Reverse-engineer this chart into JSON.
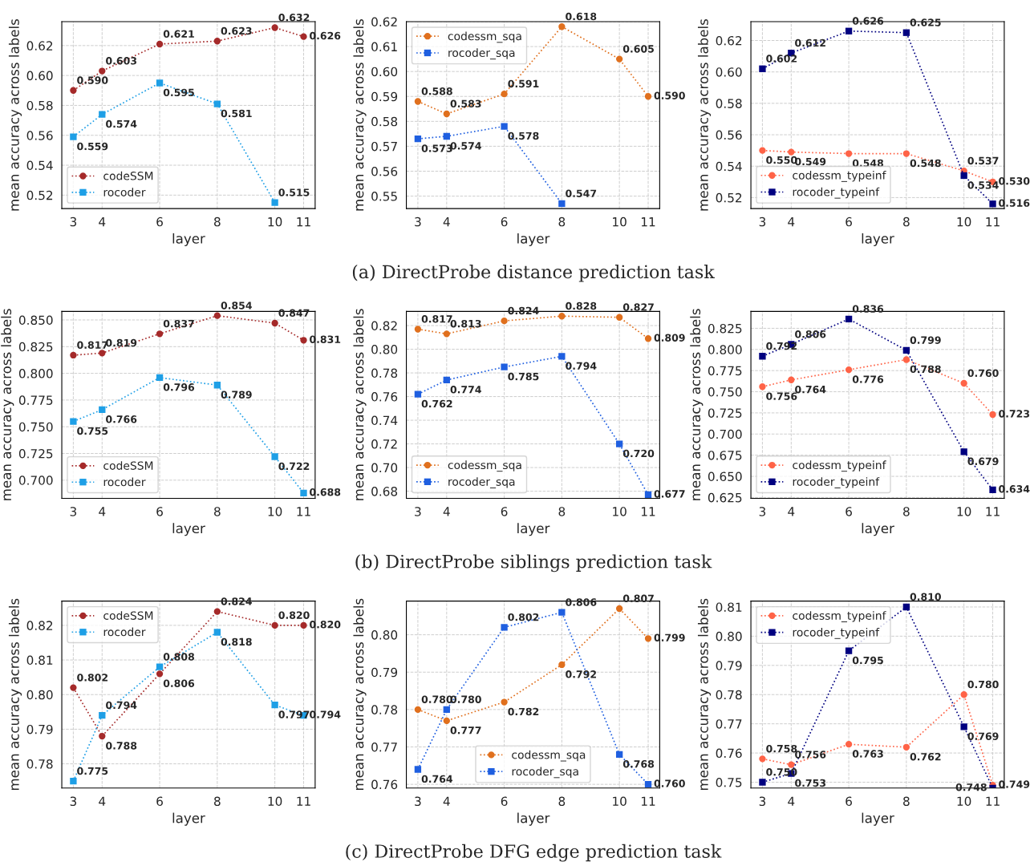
{
  "chart_data": [
    {
      "type": "line",
      "xlabel": "layer",
      "ylabel": "mean accuracy across labels",
      "x": [
        3,
        4,
        6,
        8,
        10,
        11
      ],
      "xlim": [
        2.6,
        11.4
      ],
      "xticks": [
        3,
        4,
        6,
        8,
        10,
        11
      ],
      "ylim": [
        0.511,
        0.636
      ],
      "yticks": [
        {
          "value": 0.52,
          "label": "0.52"
        },
        {
          "value": 0.54,
          "label": "0.54"
        },
        {
          "value": 0.56,
          "label": "0.56"
        },
        {
          "value": 0.58,
          "label": "0.58"
        },
        {
          "value": 0.6,
          "label": "0.60"
        },
        {
          "value": 0.62,
          "label": "0.62"
        }
      ],
      "grid": true,
      "legend": "bottom left",
      "line_style": "dotted",
      "series": [
        {
          "name": "codeSSM",
          "color": "#a52a2a",
          "marker": "circle",
          "values": [
            0.59,
            0.603,
            0.621,
            0.623,
            0.632,
            0.626
          ],
          "value_labels": [
            "0.590",
            "0.603",
            "0.621",
            "0.623",
            "0.632",
            "0.626"
          ]
        },
        {
          "name": "rocoder",
          "color": "#1e9fe6",
          "marker": "square",
          "values": [
            0.559,
            0.574,
            0.595,
            0.581,
            0.515,
            null
          ],
          "value_labels": [
            "0.559",
            "0.574",
            "0.595",
            "0.581",
            "0.515",
            null
          ]
        }
      ]
    },
    {
      "type": "line",
      "xlabel": "layer",
      "ylabel": "mean accuracy across labels",
      "x": [
        3,
        4,
        6,
        8,
        10,
        11
      ],
      "xlim": [
        2.6,
        11.4
      ],
      "xticks": [
        3,
        4,
        6,
        8,
        10,
        11
      ],
      "ylim": [
        0.545,
        0.62
      ],
      "yticks": [
        {
          "value": 0.55,
          "label": "0.55"
        },
        {
          "value": 0.56,
          "label": "0.56"
        },
        {
          "value": 0.57,
          "label": "0.57"
        },
        {
          "value": 0.58,
          "label": "0.58"
        },
        {
          "value": 0.59,
          "label": "0.59"
        },
        {
          "value": 0.6,
          "label": "0.60"
        },
        {
          "value": 0.61,
          "label": "0.61"
        },
        {
          "value": 0.62,
          "label": "0.62"
        }
      ],
      "grid": true,
      "legend": "top left",
      "line_style": "dotted",
      "annotations": [
        "(a) DirectProbe distance prediction task"
      ],
      "series": [
        {
          "name": "codessm_sqa",
          "color": "#e0701e",
          "marker": "circle",
          "values": [
            0.588,
            0.583,
            0.591,
            0.618,
            0.605,
            0.59
          ],
          "value_labels": [
            "0.588",
            "0.583",
            "0.591",
            "0.618",
            "0.605",
            "0.590"
          ]
        },
        {
          "name": "rocoder_sqa",
          "color": "#1f5fe0",
          "marker": "square",
          "values": [
            0.573,
            0.574,
            0.578,
            0.547,
            null,
            null
          ],
          "value_labels": [
            "0.573",
            "0.574",
            "0.578",
            "0.547",
            null,
            null
          ]
        }
      ]
    },
    {
      "type": "line",
      "xlabel": "layer",
      "ylabel": "mean accuracy across labels",
      "x": [
        3,
        4,
        6,
        8,
        10,
        11
      ],
      "xlim": [
        2.6,
        11.4
      ],
      "xticks": [
        3,
        4,
        6,
        8,
        10,
        11
      ],
      "ylim": [
        0.513,
        0.632
      ],
      "yticks": [
        {
          "value": 0.52,
          "label": "0.52"
        },
        {
          "value": 0.54,
          "label": "0.54"
        },
        {
          "value": 0.56,
          "label": "0.56"
        },
        {
          "value": 0.58,
          "label": "0.58"
        },
        {
          "value": 0.6,
          "label": "0.60"
        },
        {
          "value": 0.62,
          "label": "0.62"
        }
      ],
      "grid": true,
      "legend": "bottom left",
      "line_style": "dotted",
      "series": [
        {
          "name": "codessm_typeinf",
          "color": "#ff6347",
          "marker": "circle",
          "values": [
            0.55,
            0.549,
            0.548,
            0.548,
            0.537,
            0.53
          ],
          "value_labels": [
            "0.550",
            "0.549",
            "0.548",
            "0.548",
            "0.537",
            "0.530"
          ]
        },
        {
          "name": "rocoder_typeinf",
          "color": "#000080",
          "marker": "square",
          "values": [
            0.602,
            0.612,
            0.626,
            0.625,
            0.534,
            0.516
          ],
          "value_labels": [
            "0.602",
            "0.612",
            "0.626",
            "0.625",
            "0.534",
            "0.516"
          ]
        }
      ]
    },
    {
      "type": "line",
      "xlabel": "layer",
      "ylabel": "mean accuracy across labels",
      "x": [
        3,
        4,
        6,
        8,
        10,
        11
      ],
      "xlim": [
        2.6,
        11.4
      ],
      "xticks": [
        3,
        4,
        6,
        8,
        10,
        11
      ],
      "ylim": [
        0.683,
        0.858
      ],
      "yticks": [
        {
          "value": 0.7,
          "label": "0.700"
        },
        {
          "value": 0.725,
          "label": "0.725"
        },
        {
          "value": 0.75,
          "label": "0.750"
        },
        {
          "value": 0.775,
          "label": "0.775"
        },
        {
          "value": 0.8,
          "label": "0.800"
        },
        {
          "value": 0.825,
          "label": "0.825"
        },
        {
          "value": 0.85,
          "label": "0.850"
        }
      ],
      "grid": true,
      "legend": "bottom left",
      "line_style": "dotted",
      "series": [
        {
          "name": "codeSSM",
          "color": "#a52a2a",
          "marker": "circle",
          "values": [
            0.817,
            0.819,
            0.837,
            0.854,
            0.847,
            0.831
          ],
          "value_labels": [
            "0.817",
            "0.819",
            "0.837",
            "0.854",
            "0.847",
            "0.831"
          ]
        },
        {
          "name": "rocoder",
          "color": "#1e9fe6",
          "marker": "square",
          "values": [
            0.755,
            0.766,
            0.796,
            0.789,
            0.722,
            0.688
          ],
          "value_labels": [
            "0.755",
            "0.766",
            "0.796",
            "0.789",
            "0.722",
            "0.688"
          ]
        }
      ]
    },
    {
      "type": "line",
      "xlabel": "layer",
      "ylabel": "mean accuracy across labels",
      "x": [
        3,
        4,
        6,
        8,
        10,
        11
      ],
      "xlim": [
        2.6,
        11.4
      ],
      "xticks": [
        3,
        4,
        6,
        8,
        10,
        11
      ],
      "ylim": [
        0.674,
        0.832
      ],
      "yticks": [
        {
          "value": 0.68,
          "label": "0.68"
        },
        {
          "value": 0.7,
          "label": "0.70"
        },
        {
          "value": 0.72,
          "label": "0.72"
        },
        {
          "value": 0.74,
          "label": "0.74"
        },
        {
          "value": 0.76,
          "label": "0.76"
        },
        {
          "value": 0.78,
          "label": "0.78"
        },
        {
          "value": 0.8,
          "label": "0.80"
        },
        {
          "value": 0.82,
          "label": "0.82"
        }
      ],
      "grid": true,
      "legend": "bottom left",
      "line_style": "dotted",
      "annotations": [
        "(b) DirectProbe siblings prediction task"
      ],
      "series": [
        {
          "name": "codessm_sqa",
          "color": "#e0701e",
          "marker": "circle",
          "values": [
            0.817,
            0.813,
            0.824,
            0.828,
            0.827,
            0.809
          ],
          "value_labels": [
            "0.817",
            "0.813",
            "0.824",
            "0.828",
            "0.827",
            "0.809"
          ]
        },
        {
          "name": "rocoder_sqa",
          "color": "#1f5fe0",
          "marker": "square",
          "values": [
            0.762,
            0.774,
            0.785,
            0.794,
            0.72,
            0.677
          ],
          "value_labels": [
            "0.762",
            "0.774",
            "0.785",
            "0.794",
            "0.720",
            "0.677"
          ]
        }
      ]
    },
    {
      "type": "line",
      "xlabel": "layer",
      "ylabel": "mean accuracy across labels",
      "x": [
        3,
        4,
        6,
        8,
        10,
        11
      ],
      "xlim": [
        2.6,
        11.4
      ],
      "xticks": [
        3,
        4,
        6,
        8,
        10,
        11
      ],
      "ylim": [
        0.624,
        0.845
      ],
      "yticks": [
        {
          "value": 0.625,
          "label": "0.625"
        },
        {
          "value": 0.65,
          "label": "0.650"
        },
        {
          "value": 0.675,
          "label": "0.675"
        },
        {
          "value": 0.7,
          "label": "0.700"
        },
        {
          "value": 0.725,
          "label": "0.725"
        },
        {
          "value": 0.75,
          "label": "0.750"
        },
        {
          "value": 0.775,
          "label": "0.775"
        },
        {
          "value": 0.8,
          "label": "0.800"
        },
        {
          "value": 0.825,
          "label": "0.825"
        }
      ],
      "grid": true,
      "legend": "bottom left",
      "line_style": "dotted",
      "series": [
        {
          "name": "codessm_typeinf",
          "color": "#ff6347",
          "marker": "circle",
          "values": [
            0.756,
            0.764,
            0.776,
            0.788,
            0.76,
            0.723
          ],
          "value_labels": [
            "0.756",
            "0.764",
            "0.776",
            "0.788",
            "0.760",
            "0.723"
          ]
        },
        {
          "name": "rocoder_typeinf",
          "color": "#000080",
          "marker": "square",
          "values": [
            0.792,
            0.806,
            0.836,
            0.799,
            0.679,
            0.634
          ],
          "value_labels": [
            "0.792",
            "0.806",
            "0.836",
            "0.799",
            "0.679",
            "0.634"
          ]
        }
      ]
    },
    {
      "type": "line",
      "xlabel": "layer",
      "ylabel": "mean accuracy across labels",
      "x": [
        3,
        4,
        6,
        8,
        10,
        11
      ],
      "xlim": [
        2.6,
        11.4
      ],
      "xticks": [
        3,
        4,
        6,
        8,
        10,
        11
      ],
      "ylim": [
        0.773,
        0.827
      ],
      "yticks": [
        {
          "value": 0.78,
          "label": "0.78"
        },
        {
          "value": 0.79,
          "label": "0.79"
        },
        {
          "value": 0.8,
          "label": "0.80"
        },
        {
          "value": 0.81,
          "label": "0.81"
        },
        {
          "value": 0.82,
          "label": "0.82"
        }
      ],
      "grid": true,
      "legend": "top left",
      "line_style": "dotted",
      "series": [
        {
          "name": "codeSSM",
          "color": "#a52a2a",
          "marker": "circle",
          "values": [
            0.802,
            0.788,
            0.806,
            0.824,
            0.82,
            0.82
          ],
          "value_labels": [
            "0.802",
            "0.788",
            "0.806",
            "0.824",
            "0.820",
            "0.820"
          ]
        },
        {
          "name": "rocoder",
          "color": "#1e9fe6",
          "marker": "square",
          "values": [
            0.775,
            0.794,
            0.808,
            0.818,
            0.797,
            0.794
          ],
          "value_labels": [
            "0.775",
            "0.794",
            "0.808",
            "0.818",
            "0.797",
            "0.794"
          ]
        }
      ]
    },
    {
      "type": "line",
      "xlabel": "layer",
      "ylabel": "mean accuracy across labels",
      "x": [
        3,
        4,
        6,
        8,
        10,
        11
      ],
      "xlim": [
        2.6,
        11.4
      ],
      "xticks": [
        3,
        4,
        6,
        8,
        10,
        11
      ],
      "ylim": [
        0.759,
        0.809
      ],
      "yticks": [
        {
          "value": 0.76,
          "label": "0.76"
        },
        {
          "value": 0.77,
          "label": "0.77"
        },
        {
          "value": 0.78,
          "label": "0.78"
        },
        {
          "value": 0.79,
          "label": "0.79"
        },
        {
          "value": 0.8,
          "label": "0.80"
        }
      ],
      "grid": true,
      "legend": "bottom",
      "line_style": "dotted",
      "annotations": [
        "(c) DirectProbe DFG edge prediction task"
      ],
      "series": [
        {
          "name": "codessm_sqa",
          "color": "#e0701e",
          "marker": "circle",
          "values": [
            0.78,
            0.777,
            0.782,
            0.792,
            0.807,
            0.799
          ],
          "value_labels": [
            "0.780",
            "0.777",
            "0.782",
            "0.792",
            "0.807",
            "0.799"
          ]
        },
        {
          "name": "rocoder_sqa",
          "color": "#1f5fe0",
          "marker": "square",
          "values": [
            0.764,
            0.78,
            0.802,
            0.806,
            0.768,
            0.76
          ],
          "value_labels": [
            "0.764",
            "0.780",
            "0.802",
            "0.806",
            "0.768",
            "0.760"
          ]
        }
      ]
    },
    {
      "type": "line",
      "xlabel": "layer",
      "ylabel": "mean accuracy across labels",
      "x": [
        3,
        4,
        6,
        8,
        10,
        11
      ],
      "xlim": [
        2.6,
        11.4
      ],
      "xticks": [
        3,
        4,
        6,
        8,
        10,
        11
      ],
      "ylim": [
        0.748,
        0.812
      ],
      "yticks": [
        {
          "value": 0.75,
          "label": "0.75"
        },
        {
          "value": 0.76,
          "label": "0.76"
        },
        {
          "value": 0.77,
          "label": "0.77"
        },
        {
          "value": 0.78,
          "label": "0.78"
        },
        {
          "value": 0.79,
          "label": "0.79"
        },
        {
          "value": 0.8,
          "label": "0.80"
        },
        {
          "value": 0.81,
          "label": "0.81"
        }
      ],
      "grid": true,
      "legend": "top left",
      "line_style": "dotted",
      "series": [
        {
          "name": "codessm_typeinf",
          "color": "#ff6347",
          "marker": "circle",
          "values": [
            0.758,
            0.756,
            0.763,
            0.762,
            0.78,
            0.749
          ],
          "value_labels": [
            "0.758",
            "0.756",
            "0.763",
            "0.762",
            "0.780",
            "0.749"
          ]
        },
        {
          "name": "rocoder_typeinf",
          "color": "#000080",
          "marker": "square",
          "values": [
            0.75,
            0.753,
            0.795,
            0.81,
            0.769,
            0.748
          ],
          "value_labels": [
            "0.750",
            "0.753",
            "0.795",
            "0.810",
            "0.769",
            "0.748"
          ]
        }
      ]
    }
  ]
}
